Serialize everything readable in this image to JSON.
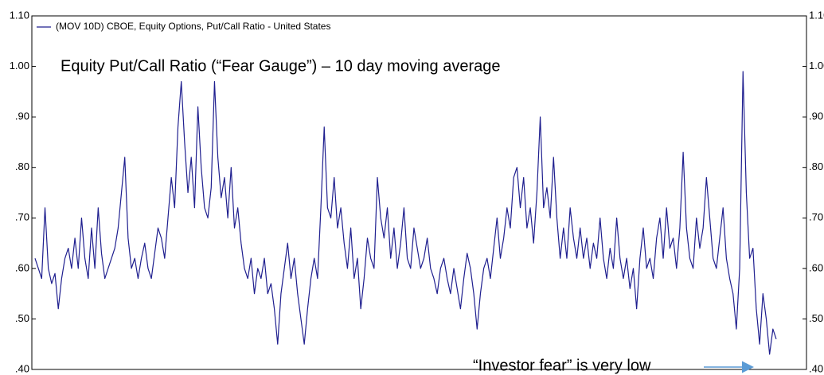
{
  "chart_data": {
    "type": "line",
    "legend": "(MOV 10D) CBOE, Equity Options, Put/Call Ratio - United States",
    "title": "Equity Put/Call Ratio (“Fear Gauge”) – 10 day moving average",
    "annotation": "“Investor fear” is very low",
    "color": "#1f1f8f",
    "ylim": [
      0.4,
      1.1
    ],
    "yticks": [
      {
        "value": 0.4,
        "label": ".40"
      },
      {
        "value": 0.5,
        "label": ".50"
      },
      {
        "value": 0.6,
        "label": ".60"
      },
      {
        "value": 0.7,
        "label": ".70"
      },
      {
        "value": 0.8,
        "label": ".80"
      },
      {
        "value": 0.9,
        "label": ".90"
      },
      {
        "value": 1.0,
        "label": "1.00"
      },
      {
        "value": 1.1,
        "label": "1.10"
      }
    ],
    "values": [
      0.62,
      0.6,
      0.58,
      0.72,
      0.6,
      0.57,
      0.59,
      0.52,
      0.58,
      0.62,
      0.64,
      0.6,
      0.66,
      0.6,
      0.7,
      0.62,
      0.58,
      0.68,
      0.6,
      0.72,
      0.63,
      0.58,
      0.6,
      0.62,
      0.64,
      0.68,
      0.75,
      0.82,
      0.66,
      0.6,
      0.62,
      0.58,
      0.62,
      0.65,
      0.6,
      0.58,
      0.63,
      0.68,
      0.66,
      0.62,
      0.7,
      0.78,
      0.72,
      0.88,
      0.97,
      0.85,
      0.75,
      0.82,
      0.72,
      0.92,
      0.8,
      0.72,
      0.7,
      0.76,
      0.97,
      0.82,
      0.74,
      0.78,
      0.7,
      0.8,
      0.68,
      0.72,
      0.65,
      0.6,
      0.58,
      0.62,
      0.55,
      0.6,
      0.58,
      0.62,
      0.55,
      0.57,
      0.52,
      0.45,
      0.55,
      0.6,
      0.65,
      0.58,
      0.62,
      0.55,
      0.5,
      0.45,
      0.52,
      0.58,
      0.62,
      0.58,
      0.72,
      0.88,
      0.72,
      0.7,
      0.78,
      0.68,
      0.72,
      0.65,
      0.6,
      0.68,
      0.58,
      0.62,
      0.52,
      0.58,
      0.66,
      0.62,
      0.6,
      0.78,
      0.7,
      0.66,
      0.72,
      0.62,
      0.68,
      0.6,
      0.65,
      0.72,
      0.62,
      0.6,
      0.68,
      0.64,
      0.6,
      0.62,
      0.66,
      0.6,
      0.58,
      0.55,
      0.6,
      0.62,
      0.58,
      0.55,
      0.6,
      0.56,
      0.52,
      0.58,
      0.63,
      0.6,
      0.55,
      0.48,
      0.55,
      0.6,
      0.62,
      0.58,
      0.64,
      0.7,
      0.62,
      0.66,
      0.72,
      0.68,
      0.78,
      0.8,
      0.72,
      0.78,
      0.68,
      0.72,
      0.65,
      0.75,
      0.9,
      0.72,
      0.76,
      0.7,
      0.82,
      0.7,
      0.62,
      0.68,
      0.62,
      0.72,
      0.66,
      0.62,
      0.68,
      0.62,
      0.66,
      0.6,
      0.65,
      0.62,
      0.7,
      0.62,
      0.58,
      0.64,
      0.6,
      0.7,
      0.62,
      0.58,
      0.62,
      0.56,
      0.6,
      0.52,
      0.62,
      0.68,
      0.6,
      0.62,
      0.58,
      0.66,
      0.7,
      0.62,
      0.72,
      0.64,
      0.66,
      0.6,
      0.68,
      0.83,
      0.68,
      0.62,
      0.6,
      0.7,
      0.64,
      0.68,
      0.78,
      0.7,
      0.62,
      0.6,
      0.66,
      0.72,
      0.62,
      0.58,
      0.55,
      0.48,
      0.6,
      0.99,
      0.75,
      0.62,
      0.64,
      0.52,
      0.45,
      0.55,
      0.5,
      0.43,
      0.48,
      0.46
    ]
  }
}
